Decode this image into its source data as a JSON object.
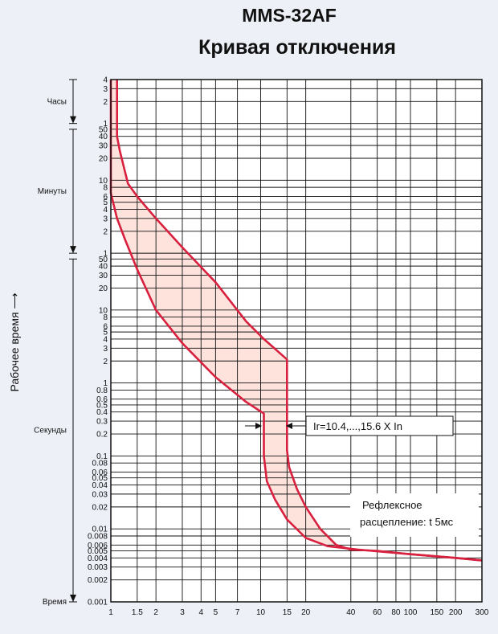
{
  "header": {
    "model": "MMS-32AF",
    "subtitle": "Кривая отключения"
  },
  "chart_data": {
    "type": "area",
    "title": "MMS-32AF Кривая отключения",
    "ylabel": "Рабочее время",
    "ylabel_arrow": "⟶",
    "xscale": "log",
    "yscale": "log",
    "xlim": [
      1,
      300
    ],
    "ylim_seconds": [
      0.001,
      14400
    ],
    "grid": true,
    "x_ticks": [
      1,
      1.5,
      2,
      3,
      4,
      5,
      7,
      10,
      15,
      20,
      40,
      60,
      80,
      100,
      150,
      200,
      300
    ],
    "x_tick_labels": [
      "1",
      "1.5",
      "2",
      "3",
      "4",
      "5",
      "7",
      "10",
      "15",
      "20",
      "40",
      "60",
      "80",
      "100",
      "150",
      "200",
      "300"
    ],
    "y_ticks": [
      {
        "label": "4",
        "seconds": 14400
      },
      {
        "label": "3",
        "seconds": 10800
      },
      {
        "label": "2",
        "seconds": 7200
      },
      {
        "label": "1",
        "seconds": 3600
      },
      {
        "label": "50",
        "seconds": 3000
      },
      {
        "label": "40",
        "seconds": 2400
      },
      {
        "label": "30",
        "seconds": 1800
      },
      {
        "label": "20",
        "seconds": 1200
      },
      {
        "label": "10",
        "seconds": 600
      },
      {
        "label": "8",
        "seconds": 480
      },
      {
        "label": "6",
        "seconds": 360
      },
      {
        "label": "5",
        "seconds": 300
      },
      {
        "label": "4",
        "seconds": 240
      },
      {
        "label": "3",
        "seconds": 180
      },
      {
        "label": "2",
        "seconds": 120
      },
      {
        "label": "1",
        "seconds": 60
      },
      {
        "label": "50",
        "seconds": 50
      },
      {
        "label": "40",
        "seconds": 40
      },
      {
        "label": "30",
        "seconds": 30
      },
      {
        "label": "20",
        "seconds": 20
      },
      {
        "label": "10",
        "seconds": 10
      },
      {
        "label": "8",
        "seconds": 8
      },
      {
        "label": "6",
        "seconds": 6
      },
      {
        "label": "5",
        "seconds": 5
      },
      {
        "label": "4",
        "seconds": 4
      },
      {
        "label": "3",
        "seconds": 3
      },
      {
        "label": "2",
        "seconds": 2
      },
      {
        "label": "1",
        "seconds": 1
      },
      {
        "label": "0.8",
        "seconds": 0.8
      },
      {
        "label": "0.6",
        "seconds": 0.6
      },
      {
        "label": "0.5",
        "seconds": 0.5
      },
      {
        "label": "0.4",
        "seconds": 0.4
      },
      {
        "label": "0.3",
        "seconds": 0.3
      },
      {
        "label": "0.2",
        "seconds": 0.2
      },
      {
        "label": "0.1",
        "seconds": 0.1
      },
      {
        "label": "0.08",
        "seconds": 0.08
      },
      {
        "label": "0.06",
        "seconds": 0.06
      },
      {
        "label": "0.05",
        "seconds": 0.05
      },
      {
        "label": "0.04",
        "seconds": 0.04
      },
      {
        "label": "0.03",
        "seconds": 0.03
      },
      {
        "label": "0.02",
        "seconds": 0.02
      },
      {
        "label": "0.01",
        "seconds": 0.01
      },
      {
        "label": "0.008",
        "seconds": 0.008
      },
      {
        "label": "0.006",
        "seconds": 0.006
      },
      {
        "label": "0.005",
        "seconds": 0.005
      },
      {
        "label": "0.004",
        "seconds": 0.004
      },
      {
        "label": "0.003",
        "seconds": 0.003
      },
      {
        "label": "0.002",
        "seconds": 0.002
      },
      {
        "label": "0.001",
        "seconds": 0.001
      }
    ],
    "y_segments": [
      {
        "label": "Часы",
        "from_seconds": 3600,
        "to_seconds": 14400
      },
      {
        "label": "Минуты",
        "from_seconds": 60,
        "to_seconds": 3000
      },
      {
        "label": "Секунды",
        "from_seconds": 0.001,
        "to_seconds": 50
      },
      {
        "label": "Время",
        "from_seconds": 0.001,
        "to_seconds": 0.001
      }
    ],
    "series": [
      {
        "role": "upper",
        "color": "#d8203f",
        "points": [
          [
            1.1,
            14400
          ],
          [
            1.1,
            2400
          ],
          [
            1.15,
            1500
          ],
          [
            1.3,
            540
          ],
          [
            1.5,
            360
          ],
          [
            2.0,
            180
          ],
          [
            3.0,
            72
          ],
          [
            5.0,
            24
          ],
          [
            8.0,
            7
          ],
          [
            10.5,
            4
          ],
          [
            15.0,
            2.1
          ],
          [
            15.0,
            0.12
          ],
          [
            15.5,
            0.07
          ],
          [
            17.5,
            0.035
          ],
          [
            20.0,
            0.02
          ],
          [
            25.0,
            0.01
          ],
          [
            32.0,
            0.006
          ],
          [
            40.0,
            0.0052
          ],
          [
            60.0,
            0.005
          ],
          [
            100.0,
            0.0045
          ],
          [
            200.0,
            0.004
          ],
          [
            300.0,
            0.0037
          ]
        ]
      },
      {
        "role": "lower",
        "color": "#d8203f",
        "points": [
          [
            1.0,
            14400
          ],
          [
            1.0,
            400
          ],
          [
            1.1,
            180
          ],
          [
            1.25,
            90
          ],
          [
            1.5,
            36
          ],
          [
            2.0,
            10
          ],
          [
            3.0,
            3.5
          ],
          [
            5.0,
            1.2
          ],
          [
            8.0,
            0.55
          ],
          [
            10.5,
            0.38
          ],
          [
            10.5,
            0.1
          ],
          [
            11.0,
            0.045
          ],
          [
            12.5,
            0.025
          ],
          [
            15.0,
            0.0135
          ],
          [
            20.0,
            0.0075
          ],
          [
            28.0,
            0.0058
          ],
          [
            45.0,
            0.0052
          ],
          [
            100.0,
            0.0045
          ],
          [
            200.0,
            0.004
          ],
          [
            300.0,
            0.0037
          ]
        ]
      }
    ],
    "fill_color": "#fde3dc",
    "annotations": [
      {
        "text": "Ir=10.4,...,15.6 X In",
        "x": 15,
        "y_seconds": 0.3
      },
      {
        "text_line1": "Рефлексное",
        "text_line2": "расцепление: t 5мс"
      }
    ]
  }
}
